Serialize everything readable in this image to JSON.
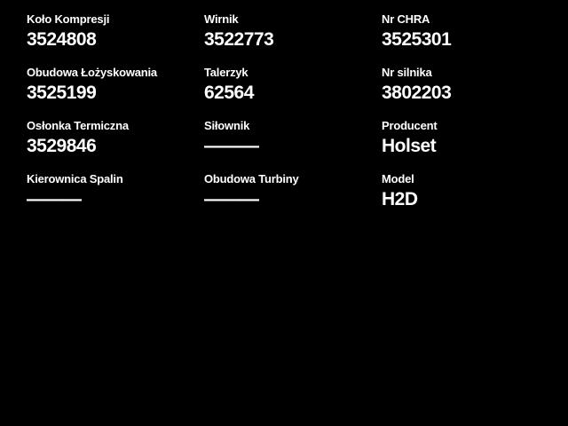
{
  "theme": {
    "background_color": "#000000",
    "text_color": "#ffffff"
  },
  "empty_value_marker": "———",
  "fields": [
    {
      "label": "Koło Kompresji",
      "value": "3524808"
    },
    {
      "label": "Wirnik",
      "value": "3522773"
    },
    {
      "label": "Nr CHRA",
      "value": "3525301"
    },
    {
      "label": "Obudowa Łożyskowania",
      "value": "3525199"
    },
    {
      "label": "Talerzyk",
      "value": "62564"
    },
    {
      "label": "Nr silnika",
      "value": "3802203"
    },
    {
      "label": "Osłonka Termiczna",
      "value": "3529846"
    },
    {
      "label": "Siłownik",
      "value": "———"
    },
    {
      "label": "Producent",
      "value": "Holset"
    },
    {
      "label": "Kierownica Spalin",
      "value": "———"
    },
    {
      "label": "Obudowa Turbiny",
      "value": "———"
    },
    {
      "label": "Model",
      "value": "H2D"
    }
  ]
}
